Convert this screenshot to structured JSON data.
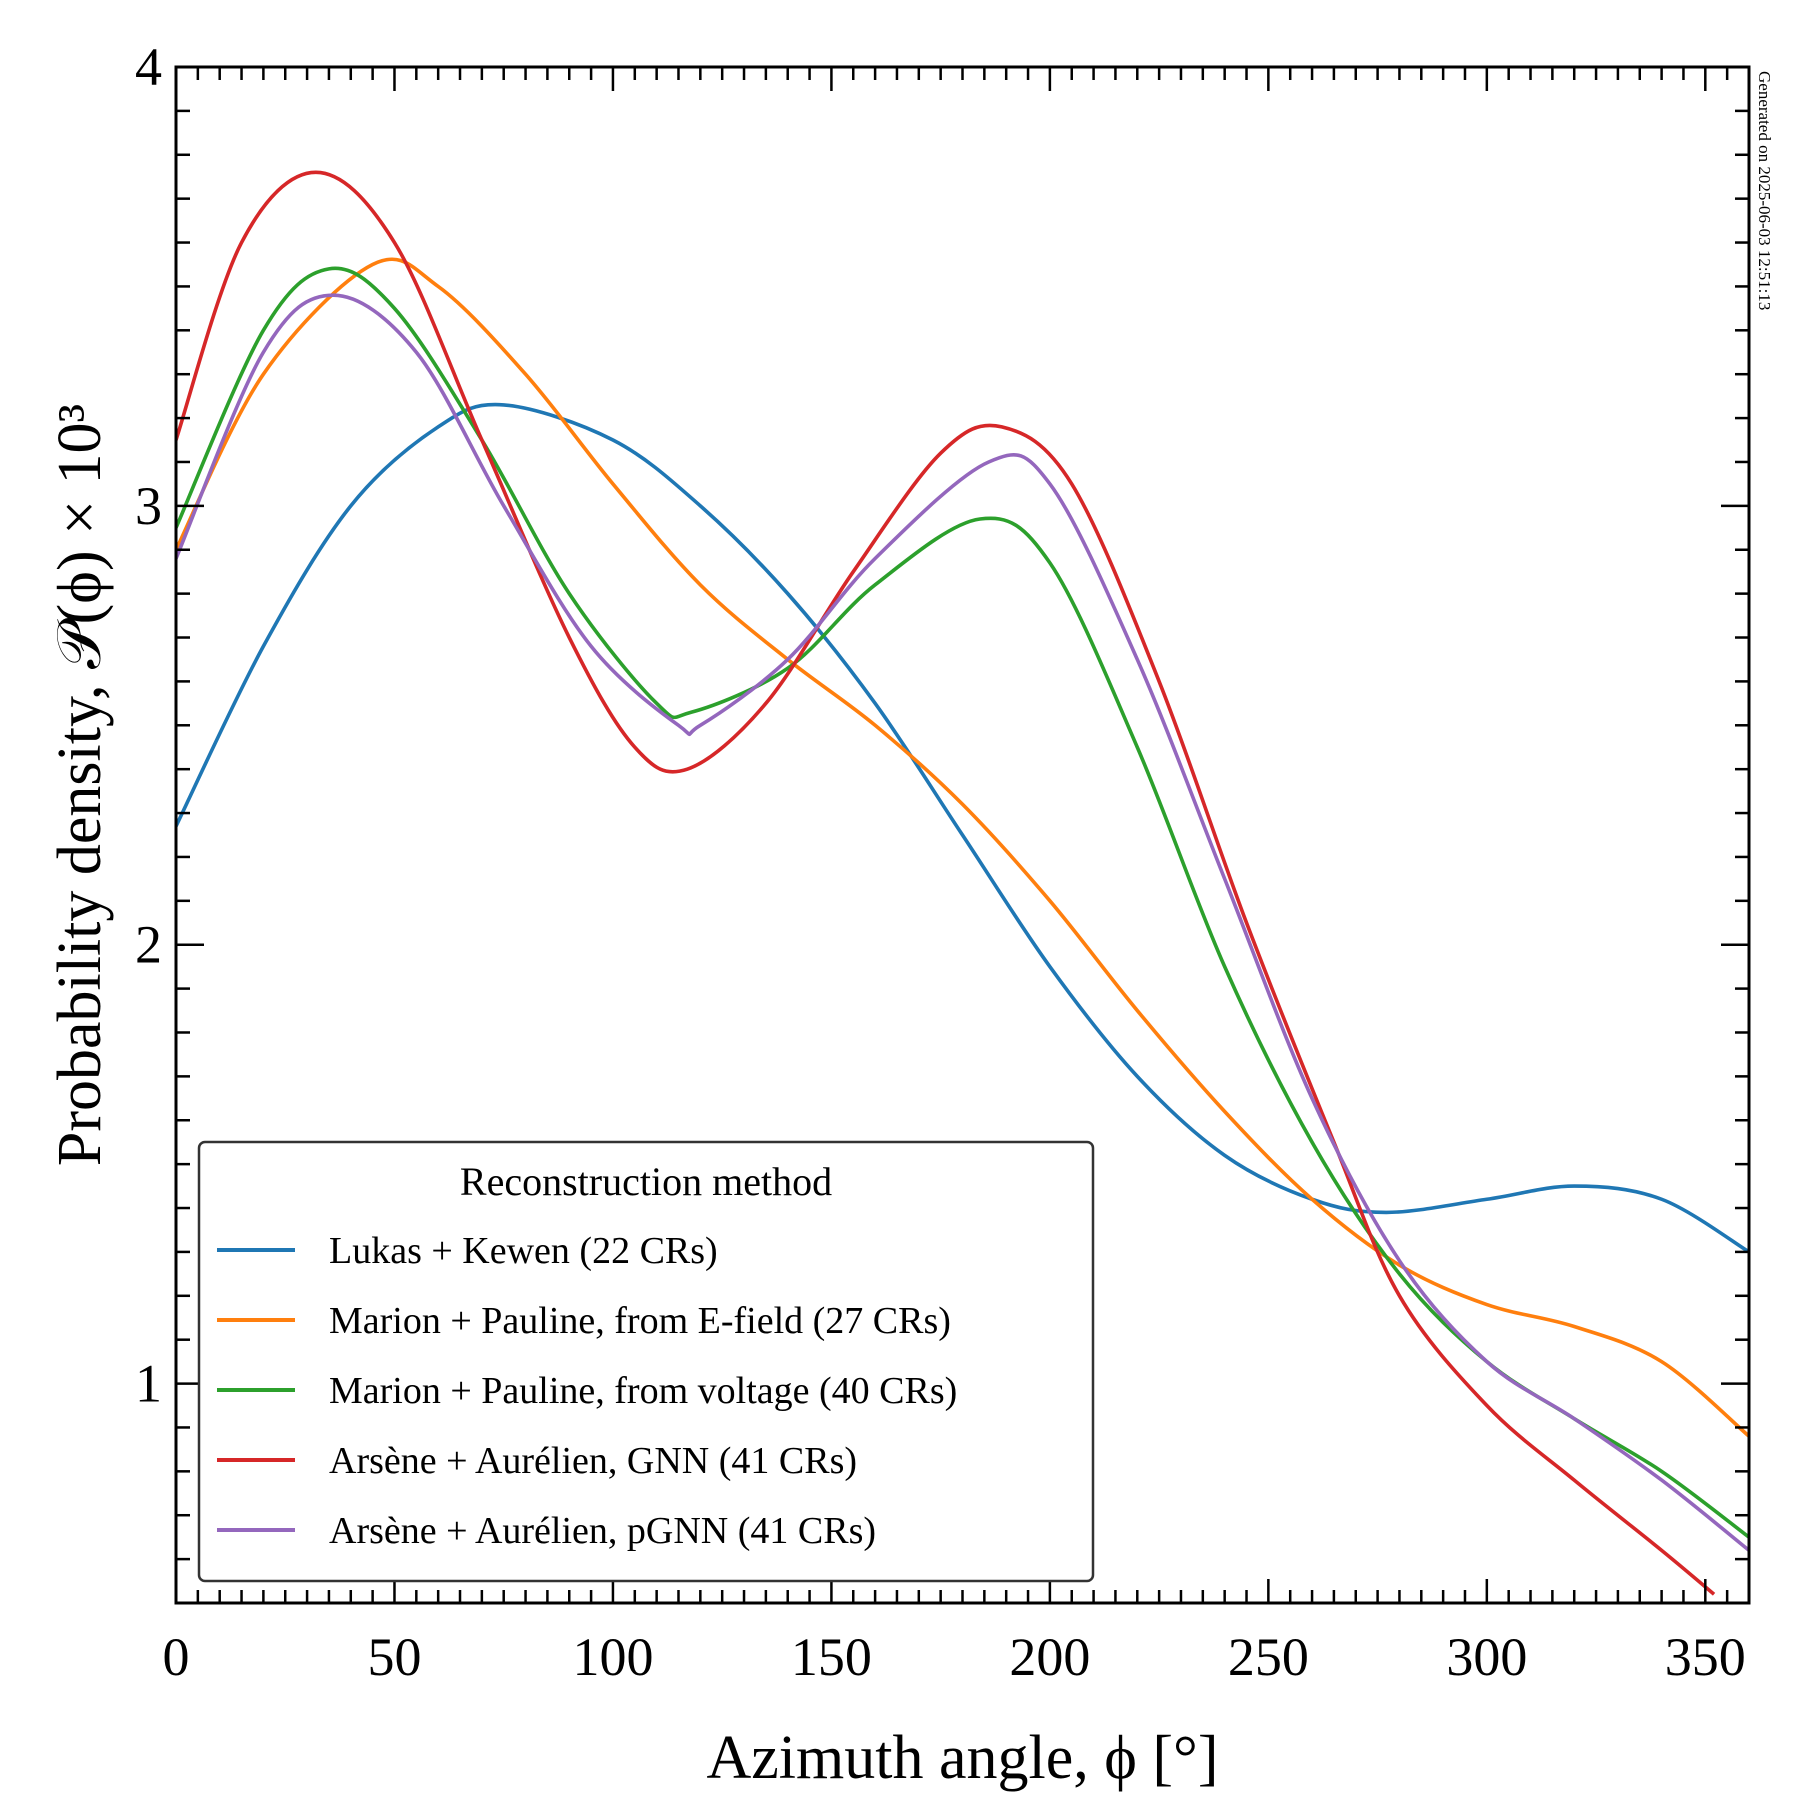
{
  "chart_data": {
    "type": "line",
    "title": "",
    "xlabel": "Azimuth angle, ϕ [°]",
    "ylabel": "Probability density, 𝒫(ϕ) × 10³",
    "xlim": [
      0,
      360
    ],
    "ylim": [
      0.5,
      4
    ],
    "xticks": [
      0,
      50,
      100,
      150,
      200,
      250,
      300,
      350
    ],
    "xtick_labels": [
      "0",
      "50",
      "100",
      "150",
      "200",
      "250",
      "300",
      "350"
    ],
    "yticks": [
      1,
      2,
      3,
      4
    ],
    "ytick_labels": [
      "1",
      "2",
      "3",
      "4"
    ],
    "x_minor_step": 5,
    "y_minor_step": 0.1,
    "grid": false,
    "legend": {
      "title": "Reconstruction method",
      "placement": "bottom-left"
    },
    "annotation": "Generated on 2025-06-03 12:51:13",
    "series": [
      {
        "name": "Lukas + Kewen (22 CRs)",
        "color": "#1f77b4",
        "x": [
          0,
          20,
          40,
          60,
          75,
          100,
          120,
          140,
          160,
          180,
          200,
          220,
          240,
          260,
          277,
          300,
          320,
          340,
          360
        ],
        "y": [
          2.27,
          2.68,
          3.0,
          3.18,
          3.23,
          3.15,
          3.0,
          2.8,
          2.55,
          2.25,
          1.95,
          1.7,
          1.52,
          1.42,
          1.39,
          1.42,
          1.45,
          1.42,
          1.3
        ]
      },
      {
        "name": "Marion + Pauline, from E-field (27 CRs)",
        "color": "#ff7f0e",
        "x": [
          0,
          20,
          45,
          60,
          80,
          100,
          120,
          140,
          160,
          180,
          200,
          220,
          240,
          260,
          280,
          300,
          320,
          340,
          360
        ],
        "y": [
          2.9,
          3.3,
          3.55,
          3.5,
          3.3,
          3.05,
          2.82,
          2.65,
          2.5,
          2.32,
          2.1,
          1.85,
          1.62,
          1.42,
          1.27,
          1.18,
          1.13,
          1.05,
          0.88
        ]
      },
      {
        "name": "Marion + Pauline, from voltage (40 CRs)",
        "color": "#2ca02c",
        "x": [
          0,
          20,
          35,
          50,
          70,
          90,
          110,
          118,
          140,
          160,
          184,
          200,
          220,
          240,
          260,
          280,
          300,
          320,
          340,
          360
        ],
        "y": [
          2.95,
          3.4,
          3.54,
          3.45,
          3.15,
          2.8,
          2.55,
          2.53,
          2.63,
          2.82,
          2.97,
          2.87,
          2.45,
          1.95,
          1.55,
          1.25,
          1.05,
          0.92,
          0.8,
          0.65
        ]
      },
      {
        "name": "Arsène + Aurélien, GNN (41 CRs)",
        "color": "#d62728",
        "x": [
          0,
          15,
          32,
          50,
          70,
          90,
          105,
          117,
          135,
          155,
          175,
          189,
          205,
          225,
          245,
          265,
          280,
          300,
          320,
          340,
          352
        ],
        "y": [
          3.15,
          3.6,
          3.76,
          3.6,
          3.15,
          2.7,
          2.45,
          2.4,
          2.55,
          2.85,
          3.12,
          3.18,
          3.05,
          2.6,
          2.05,
          1.55,
          1.2,
          0.95,
          0.78,
          0.62,
          0.52
        ]
      },
      {
        "name": "Arsène + Aurélien, pGNN (41 CRs)",
        "color": "#9467bd",
        "x": [
          0,
          20,
          36,
          55,
          75,
          95,
          115,
          120,
          140,
          160,
          186,
          200,
          220,
          240,
          260,
          280,
          300,
          320,
          340,
          360
        ],
        "y": [
          2.88,
          3.35,
          3.48,
          3.35,
          3.0,
          2.68,
          2.5,
          2.5,
          2.65,
          2.88,
          3.1,
          3.05,
          2.65,
          2.15,
          1.65,
          1.28,
          1.05,
          0.92,
          0.78,
          0.62
        ]
      }
    ]
  }
}
